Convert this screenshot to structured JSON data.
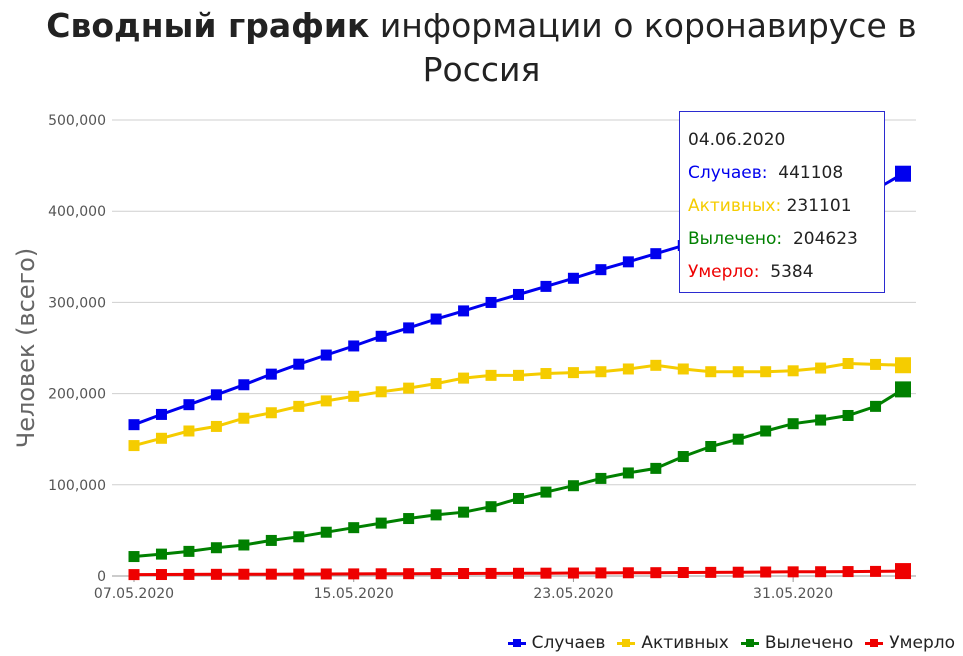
{
  "title": {
    "bold": "Сводный график",
    "rest": "информации о коронавирусе в Россия"
  },
  "chart_data": {
    "type": "line",
    "title": "Сводный график информации о коронавирусе в Россия",
    "ylabel": "Человек (всего)",
    "xlabel": "",
    "ylim": [
      0,
      500000
    ],
    "y_ticks": [
      "0",
      "100,000",
      "200,000",
      "300,000",
      "400,000",
      "500,000"
    ],
    "x_ticks": [
      "07.05.2020",
      "15.05.2020",
      "23.05.2020",
      "31.05.2020"
    ],
    "x": [
      "07.05.2020",
      "08.05.2020",
      "09.05.2020",
      "10.05.2020",
      "11.05.2020",
      "12.05.2020",
      "13.05.2020",
      "14.05.2020",
      "15.05.2020",
      "16.05.2020",
      "17.05.2020",
      "18.05.2020",
      "19.05.2020",
      "20.05.2020",
      "21.05.2020",
      "22.05.2020",
      "23.05.2020",
      "24.05.2020",
      "25.05.2020",
      "26.05.2020",
      "27.05.2020",
      "28.05.2020",
      "29.05.2020",
      "30.05.2020",
      "31.05.2020",
      "01.06.2020",
      "02.06.2020",
      "03.06.2020",
      "04.06.2020"
    ],
    "grid": true,
    "legend_position": "bottom-right",
    "series": [
      {
        "name": "Случаев",
        "color": "#0000ee",
        "values": [
          165929,
          177160,
          187859,
          198676,
          209688,
          221344,
          232243,
          242271,
          252245,
          262843,
          272043,
          281752,
          290678,
          299941,
          308705,
          317554,
          326448,
          335882,
          344481,
          353427,
          362342,
          370680,
          379051,
          387623,
          396575,
          405843,
          414878,
          423741,
          441108
        ]
      },
      {
        "name": "Активных",
        "color": "#f5cc00",
        "values": [
          143000,
          151000,
          159000,
          164000,
          173000,
          179000,
          186000,
          192000,
          197000,
          202000,
          206000,
          211000,
          217000,
          220000,
          220000,
          222000,
          223000,
          224000,
          227000,
          231000,
          227000,
          224000,
          224000,
          224000,
          225000,
          228000,
          233000,
          232000,
          231101
        ]
      },
      {
        "name": "Вылечено",
        "color": "#008000",
        "values": [
          21327,
          24000,
          27000,
          31000,
          34000,
          39000,
          43000,
          48000,
          53000,
          58000,
          63000,
          67000,
          70000,
          76000,
          85000,
          92000,
          99000,
          107000,
          113000,
          118000,
          131000,
          142000,
          150000,
          159000,
          167000,
          171000,
          176000,
          186000,
          204623
        ]
      },
      {
        "name": "Умерло",
        "color": "#ee0000",
        "values": [
          1537,
          1625,
          1723,
          1827,
          1915,
          2009,
          2116,
          2212,
          2305,
          2418,
          2537,
          2631,
          2722,
          2837,
          2972,
          3099,
          3249,
          3388,
          3541,
          3633,
          3807,
          3968,
          4142,
          4374,
          4555,
          4693,
          4855,
          5037,
          5384
        ]
      }
    ]
  },
  "tooltip": {
    "date": "04.06.2020",
    "rows": [
      {
        "label": "Случаев:",
        "value": "441108",
        "color": "#0000ee"
      },
      {
        "label": "Активных:",
        "value": "231101",
        "color": "#f5cc00"
      },
      {
        "label": "Вылечено:",
        "value": "204623",
        "color": "#008000"
      },
      {
        "label": "Умерло:",
        "value": "5384",
        "color": "#ee0000"
      }
    ]
  },
  "legend": [
    {
      "label": "Случаев",
      "color": "#0000ee"
    },
    {
      "label": "Активных",
      "color": "#f5cc00"
    },
    {
      "label": "Вылечено",
      "color": "#008000"
    },
    {
      "label": "Умерло",
      "color": "#ee0000"
    }
  ]
}
